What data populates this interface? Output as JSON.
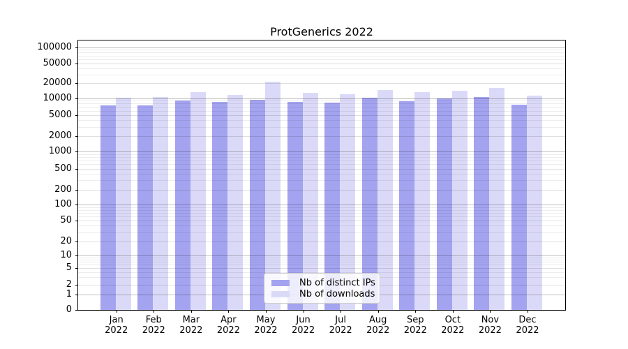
{
  "chart_data": {
    "type": "bar",
    "title": "ProtGenerics 2022",
    "categories": [
      "Jan",
      "Feb",
      "Mar",
      "Apr",
      "May",
      "Jun",
      "Jul",
      "Aug",
      "Sep",
      "Oct",
      "Nov",
      "Dec"
    ],
    "x_tick_second_line": "2022",
    "series": [
      {
        "name": "Nb of distinct IPs",
        "color": "#a3a3f0",
        "values": [
          7500,
          7500,
          9100,
          8500,
          9400,
          8500,
          8300,
          10200,
          8700,
          9800,
          10500,
          7700
        ]
      },
      {
        "name": "Nb of downloads",
        "color": "#dadaf8",
        "values": [
          10300,
          10400,
          13300,
          11600,
          21500,
          12700,
          12100,
          14600,
          13100,
          14200,
          15800,
          11300
        ]
      }
    ],
    "y_ticks": [
      0,
      1,
      2,
      5,
      10,
      20,
      50,
      100,
      200,
      500,
      1000,
      2000,
      5000,
      10000,
      20000,
      50000,
      100000
    ],
    "ylim": [
      0,
      100000
    ],
    "yscale": "log-like (symlog: linear 0-1, logarithmic above)",
    "xlabel": "",
    "ylabel": "",
    "grid": "horizontal major and minor gridlines, drawn over the bars",
    "legend_position": "bottom-center"
  }
}
